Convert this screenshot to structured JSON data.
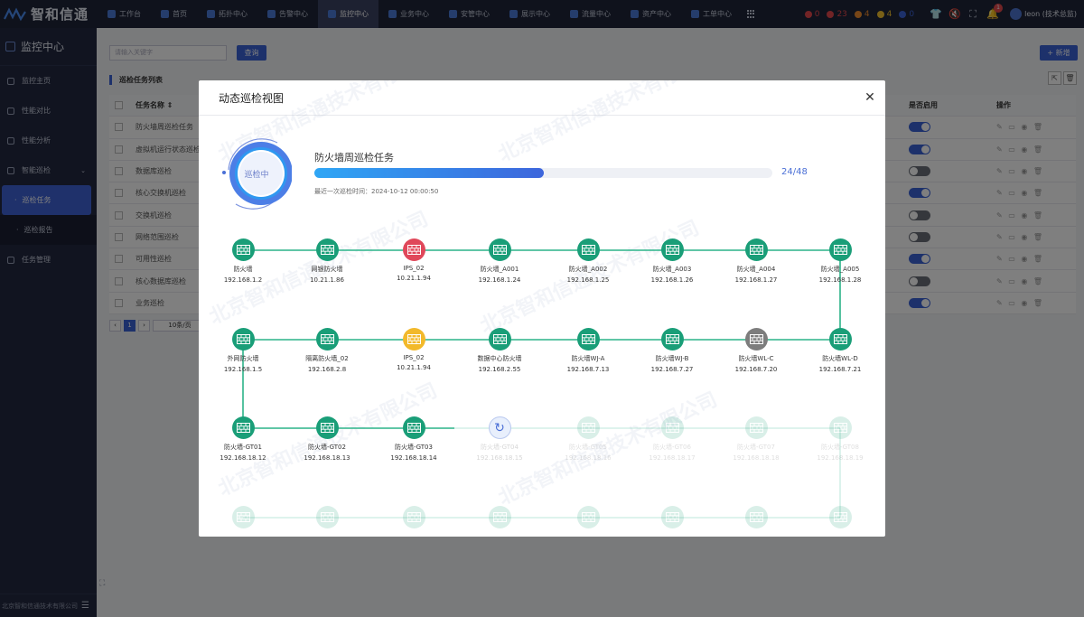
{
  "brand": {
    "name": "智和信通"
  },
  "top_nav": [
    {
      "label": "工作台"
    },
    {
      "label": "首页"
    },
    {
      "label": "拓扑中心"
    },
    {
      "label": "告警中心"
    },
    {
      "label": "监控中心",
      "active": true
    },
    {
      "label": "业务中心"
    },
    {
      "label": "安管中心"
    },
    {
      "label": "展示中心"
    },
    {
      "label": "流量中心"
    },
    {
      "label": "资产中心"
    },
    {
      "label": "工单中心"
    }
  ],
  "alarms": [
    {
      "count": "0",
      "color": "#e5484d"
    },
    {
      "count": "23",
      "color": "#e5484d"
    },
    {
      "count": "4",
      "color": "#f08c2e"
    },
    {
      "count": "4",
      "color": "#f2c12e"
    },
    {
      "count": "0",
      "color": "#3a62d6"
    }
  ],
  "notifications": {
    "badge": "1"
  },
  "user": {
    "name": "leon (技术总监)"
  },
  "sidebar": {
    "title": "监控中心",
    "items": [
      {
        "label": "监控主页",
        "icon": "home-icon"
      },
      {
        "label": "性能对比",
        "icon": "compare-icon"
      },
      {
        "label": "性能分析",
        "icon": "analysis-icon"
      },
      {
        "label": "智能巡检",
        "icon": "inspect-icon",
        "expanded": true
      }
    ],
    "sub_items": [
      {
        "label": "巡检任务",
        "active": true
      },
      {
        "label": "巡检报告"
      }
    ],
    "after": [
      {
        "label": "任务管理",
        "icon": "task-icon"
      }
    ],
    "footer": "北京智和信通技术有限公司"
  },
  "background": {
    "search_placeholder": "请输入关键字",
    "query_label": "查询",
    "add_label": "+ 新增",
    "list_title": "巡检任务列表",
    "columns": {
      "name": "任务名称 ⇕",
      "enable": "是否启用",
      "ops": "操作"
    },
    "rows": [
      {
        "name": "防火墙周巡检任务",
        "enabled": true
      },
      {
        "name": "虚拟机运行状态巡检",
        "enabled": true
      },
      {
        "name": "数据库巡检",
        "enabled": false
      },
      {
        "name": "核心交换机巡检",
        "enabled": true
      },
      {
        "name": "交换机巡检",
        "enabled": false
      },
      {
        "name": "网络范围巡检",
        "enabled": false
      },
      {
        "name": "可用性巡检",
        "enabled": true
      },
      {
        "name": "核心数据库巡检",
        "enabled": false
      },
      {
        "name": "业务巡检",
        "enabled": true
      }
    ],
    "pager": {
      "current": "1",
      "page_size": "10条/页"
    }
  },
  "modal": {
    "title": "动态巡检视图",
    "status": "巡检中",
    "task_name": "防火墙周巡检任务",
    "progress": {
      "done": 24,
      "total": 48,
      "label": "24/48"
    },
    "last_time": "最近一次巡检时间：2024-10-12 00:00:50",
    "devices_row1": [
      {
        "name": "防火墙",
        "ip": "192.168.1.2",
        "state": "ok"
      },
      {
        "name": "网银防火墙",
        "ip": "10.21.1.86",
        "state": "ok"
      },
      {
        "name": "IPS_02",
        "ip": "10.21.1.94",
        "state": "error"
      },
      {
        "name": "防火墙_A001",
        "ip": "192.168.1.24",
        "state": "ok"
      },
      {
        "name": "防火墙_A002",
        "ip": "192.168.1.25",
        "state": "ok"
      },
      {
        "name": "防火墙_A003",
        "ip": "192.168.1.26",
        "state": "ok"
      },
      {
        "name": "防火墙_A004",
        "ip": "192.168.1.27",
        "state": "ok"
      },
      {
        "name": "防火墙_A005",
        "ip": "192.168.1.28",
        "state": "ok"
      }
    ],
    "devices_row2": [
      {
        "name": "外网防火墙",
        "ip": "192.168.1.5",
        "state": "ok"
      },
      {
        "name": "隔离防火墙_02",
        "ip": "192.168.2.8",
        "state": "ok"
      },
      {
        "name": "IPS_02",
        "ip": "10.21.1.94",
        "state": "warning"
      },
      {
        "name": "数据中心防火墙",
        "ip": "192.168.2.55",
        "state": "ok"
      },
      {
        "name": "防火墙WJ-A",
        "ip": "192.168.7.13",
        "state": "ok"
      },
      {
        "name": "防火墙WJ-B",
        "ip": "192.168.7.27",
        "state": "ok"
      },
      {
        "name": "防火墙WL-C",
        "ip": "192.168.7.20",
        "state": "offline"
      },
      {
        "name": "防火墙WL-D",
        "ip": "192.168.7.21",
        "state": "ok"
      }
    ],
    "devices_row3": [
      {
        "name": "防火墙-GT01",
        "ip": "192.168.18.12",
        "state": "ok"
      },
      {
        "name": "防火墙-GT02",
        "ip": "192.168.18.13",
        "state": "ok"
      },
      {
        "name": "防火墙-GT03",
        "ip": "192.168.18.14",
        "state": "ok"
      },
      {
        "name": "防火墙-GT04",
        "ip": "192.168.18.15",
        "state": "running"
      },
      {
        "name": "防火墙-GT05",
        "ip": "192.168.18.16",
        "state": "pending"
      },
      {
        "name": "防火墙-GT06",
        "ip": "192.168.18.17",
        "state": "pending"
      },
      {
        "name": "防火墙-GT07",
        "ip": "192.168.18.18",
        "state": "pending"
      },
      {
        "name": "防火墙-GT08",
        "ip": "192.168.18.19",
        "state": "pending"
      }
    ],
    "devices_row4": [
      {
        "state": "pending"
      },
      {
        "state": "pending"
      },
      {
        "state": "pending"
      },
      {
        "state": "pending"
      },
      {
        "state": "pending"
      },
      {
        "state": "pending"
      },
      {
        "state": "pending"
      },
      {
        "state": "pending"
      }
    ],
    "state_colors": {
      "ok": "#1a9e78",
      "error": "#e0485a",
      "warning": "#f2b92b",
      "offline": "#7d7d7d",
      "pending": "#1a9e78",
      "link": "#2bb389"
    },
    "watermark": "北京智和信通技术有限公司"
  }
}
